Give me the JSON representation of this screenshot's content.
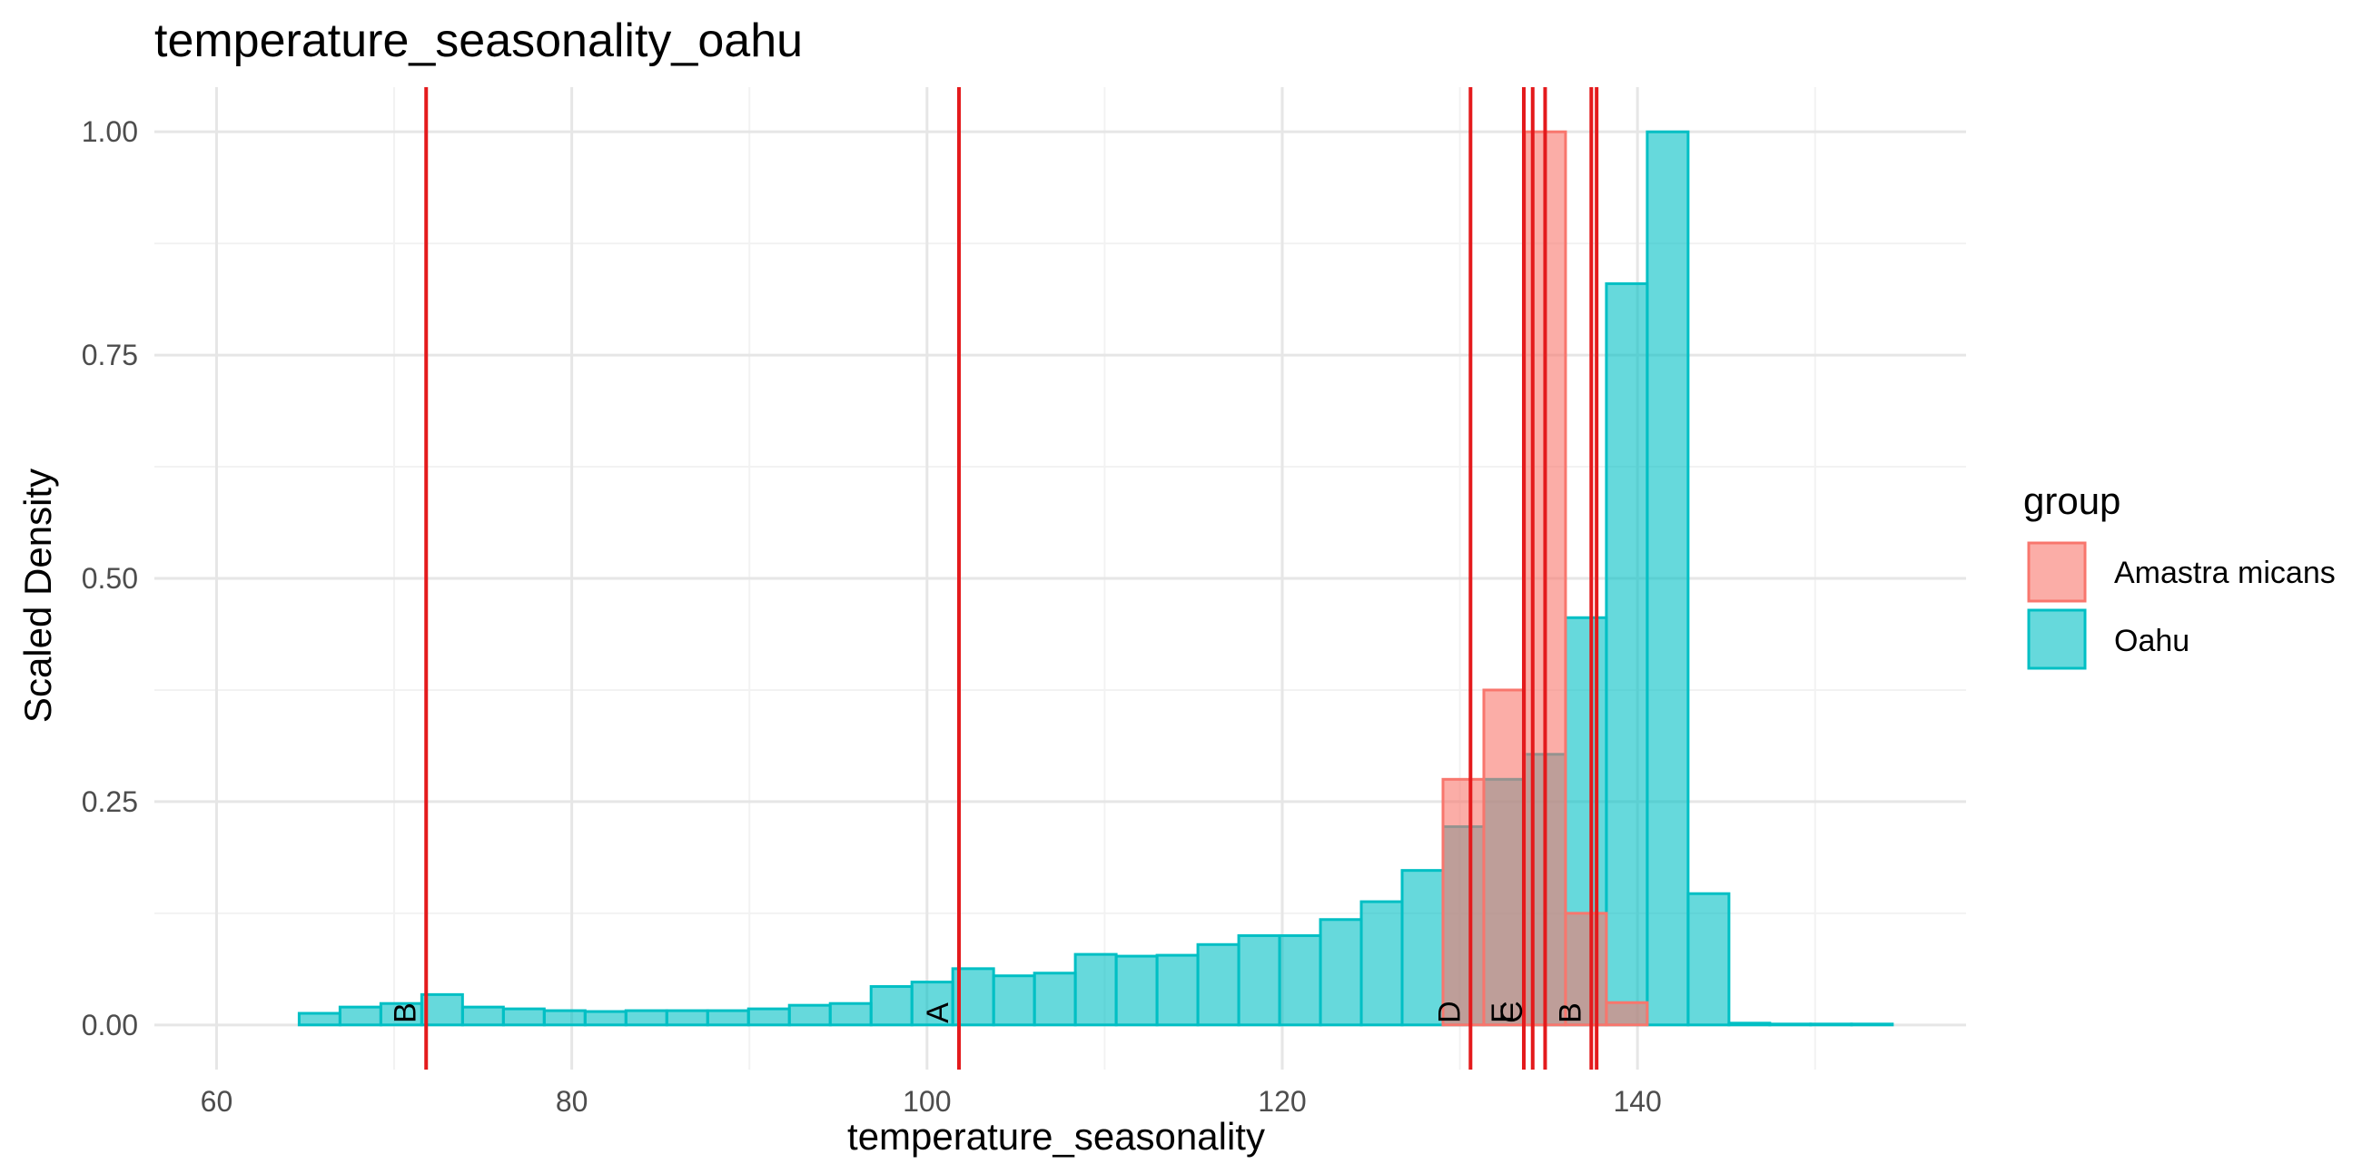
{
  "chart_data": {
    "type": "bar",
    "subtype": "histogram",
    "title": "temperature_seasonality_oahu",
    "xlabel": "temperature_seasonality",
    "ylabel": "Scaled Density",
    "xlim": [
      56.5,
      158.5
    ],
    "ylim": [
      -0.05,
      1.05
    ],
    "x_ticks": [
      60,
      80,
      100,
      120,
      140
    ],
    "x_tick_labels": [
      "60",
      "80",
      "100",
      "120",
      "140"
    ],
    "y_ticks": [
      0,
      0.25,
      0.5,
      0.75,
      1.0
    ],
    "y_tick_labels": [
      "0.00",
      "0.25",
      "0.50",
      "0.75",
      "1.00"
    ],
    "grid": true,
    "bin_width": 2.3,
    "legend": {
      "title": "group",
      "placement": "right",
      "entries": [
        {
          "label": "Amastra micans",
          "fill": "#F8766D"
        },
        {
          "label": "Oahu",
          "fill": "#00BFC4"
        }
      ]
    },
    "series": [
      {
        "name": "Oahu",
        "fill": "#00BFC4",
        "stroke": "#00BFC4",
        "bin_centers": [
          65.8,
          68.1,
          70.4,
          72.7,
          75.0,
          77.3,
          79.6,
          81.9,
          84.2,
          86.5,
          88.8,
          91.1,
          93.4,
          95.7,
          98.0,
          100.3,
          102.6,
          104.9,
          107.2,
          109.5,
          111.8,
          114.1,
          116.4,
          118.7,
          121.0,
          123.3,
          125.6,
          127.9,
          130.2,
          132.5,
          134.8,
          137.1,
          139.4,
          141.7,
          144.0,
          146.3,
          148.6,
          150.9,
          153.2
        ],
        "values": [
          0.013,
          0.02,
          0.024,
          0.034,
          0.02,
          0.018,
          0.016,
          0.015,
          0.016,
          0.016,
          0.016,
          0.018,
          0.022,
          0.024,
          0.043,
          0.048,
          0.063,
          0.055,
          0.058,
          0.079,
          0.077,
          0.078,
          0.09,
          0.1,
          0.1,
          0.118,
          0.138,
          0.173,
          0.222,
          0.275,
          0.303,
          0.456,
          0.83,
          1.0,
          0.147,
          0.002,
          0.001,
          0.001,
          0.001
        ]
      },
      {
        "name": "Amastra micans",
        "fill": "#F8766D",
        "stroke": "#F8766D",
        "bin_centers": [
          130.2,
          132.5,
          134.8,
          137.1,
          139.4
        ],
        "values": [
          0.275,
          0.375,
          1.0,
          0.125,
          0.025
        ]
      }
    ],
    "vlines": {
      "color": "#E41A1C",
      "lines": [
        {
          "x": 71.8,
          "label": "B"
        },
        {
          "x": 101.8,
          "label": "A"
        },
        {
          "x": 130.6,
          "label": "D"
        },
        {
          "x": 133.6,
          "label": "E"
        },
        {
          "x": 134.1,
          "label": "C"
        },
        {
          "x": 134.8,
          "label": ""
        },
        {
          "x": 137.4,
          "label": "B"
        },
        {
          "x": 137.7,
          "label": ""
        }
      ]
    }
  }
}
